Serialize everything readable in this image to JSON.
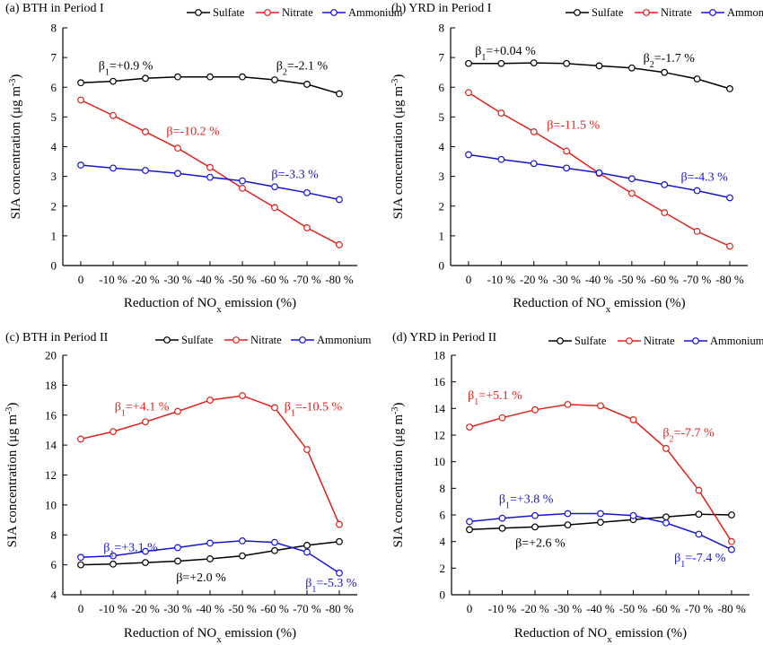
{
  "colors": {
    "Sulfate": "#000000",
    "Nitrate": "#e0201b",
    "Ammonium": "#1515d0"
  },
  "x_tick_labels": [
    "0",
    "-10 %",
    "-20 %",
    "-30 %",
    "-40 %",
    "-50 %",
    "-60 %",
    "-70 %",
    "-80 %"
  ],
  "chart_data": [
    {
      "type": "line",
      "panel": "(a)",
      "title": "(a) BTH in Period I",
      "xlabel": "Reduction of NOx emission (%)",
      "ylabel": "SIA concentration (μg m-3)",
      "x": [
        0,
        -10,
        -20,
        -30,
        -40,
        -50,
        -60,
        -70,
        -80
      ],
      "ylim": [
        0,
        8
      ],
      "yticks": [
        0,
        1,
        2,
        3,
        4,
        5,
        6,
        7,
        8
      ],
      "legend": "top-right",
      "series": [
        {
          "name": "Sulfate",
          "values": [
            6.15,
            6.2,
            6.3,
            6.35,
            6.35,
            6.35,
            6.25,
            6.1,
            5.78
          ]
        },
        {
          "name": "Nitrate",
          "values": [
            5.57,
            5.05,
            4.5,
            3.95,
            3.3,
            2.6,
            1.95,
            1.27,
            0.7
          ]
        },
        {
          "name": "Ammonium",
          "values": [
            3.38,
            3.28,
            3.2,
            3.1,
            2.97,
            2.85,
            2.65,
            2.45,
            2.22
          ]
        }
      ],
      "annotations": [
        {
          "symbol": "β",
          "sub": "1",
          "text": "=+0.9 %",
          "color": "Sulfate",
          "x": -5.5,
          "y": 6.6
        },
        {
          "symbol": "β",
          "sub": "2",
          "text": "=-2.1 %",
          "color": "Sulfate",
          "x": -60.5,
          "y": 6.6
        },
        {
          "symbol": "β",
          "sub": "",
          "text": "=-10.2 %",
          "color": "Nitrate",
          "x": -26.5,
          "y": 4.4
        },
        {
          "symbol": "β",
          "sub": "",
          "text": "=-3.3 %",
          "color": "Ammonium",
          "x": -59,
          "y": 2.95
        }
      ]
    },
    {
      "type": "line",
      "panel": "(b)",
      "title": "(b) YRD in Period I",
      "xlabel": "Reduction of NOx emission (%)",
      "ylabel": "SIA concentration (μg m-3)",
      "x": [
        0,
        -10,
        -20,
        -30,
        -40,
        -50,
        -60,
        -70,
        -80
      ],
      "ylim": [
        0,
        8
      ],
      "yticks": [
        0,
        1,
        2,
        3,
        4,
        5,
        6,
        7,
        8
      ],
      "legend": "top-right",
      "series": [
        {
          "name": "Sulfate",
          "values": [
            6.8,
            6.8,
            6.82,
            6.8,
            6.72,
            6.65,
            6.5,
            6.28,
            5.95
          ]
        },
        {
          "name": "Nitrate",
          "values": [
            5.82,
            5.13,
            4.5,
            3.85,
            3.1,
            2.43,
            1.78,
            1.15,
            0.65
          ]
        },
        {
          "name": "Ammonium",
          "values": [
            3.73,
            3.57,
            3.43,
            3.28,
            3.12,
            2.92,
            2.72,
            2.52,
            2.28
          ]
        }
      ],
      "annotations": [
        {
          "symbol": "β",
          "sub": "1",
          "text": "=+0.04 %",
          "color": "Sulfate",
          "x": -2,
          "y": 7.1
        },
        {
          "symbol": "β",
          "sub": "2",
          "text": "=-1.7 %",
          "color": "Sulfate",
          "x": -53.5,
          "y": 6.85
        },
        {
          "symbol": "β",
          "sub": "",
          "text": "=-11.5 %",
          "color": "Nitrate",
          "x": -24,
          "y": 4.6
        },
        {
          "symbol": "β",
          "sub": "",
          "text": "=-4.3 %",
          "color": "Ammonium",
          "x": -65,
          "y": 2.85
        }
      ]
    },
    {
      "type": "line",
      "panel": "(c)",
      "title": "(c) BTH in Period II",
      "xlabel": "Reduction of NOx emission (%)",
      "ylabel": "SIA concentration (μg m-3)",
      "x": [
        0,
        -10,
        -20,
        -30,
        -40,
        -50,
        -60,
        -70,
        -80
      ],
      "ylim": [
        4,
        20
      ],
      "yticks": [
        4,
        6,
        8,
        10,
        12,
        14,
        16,
        18,
        20
      ],
      "legend": "top-right",
      "series": [
        {
          "name": "Sulfate",
          "values": [
            6.0,
            6.05,
            6.15,
            6.25,
            6.4,
            6.6,
            6.95,
            7.3,
            7.55
          ]
        },
        {
          "name": "Nitrate",
          "values": [
            14.4,
            14.9,
            15.55,
            16.25,
            17.0,
            17.3,
            16.5,
            13.7,
            8.7
          ]
        },
        {
          "name": "Ammonium",
          "values": [
            6.5,
            6.6,
            6.9,
            7.15,
            7.45,
            7.6,
            7.5,
            6.85,
            5.45
          ]
        }
      ],
      "annotations": [
        {
          "symbol": "β",
          "sub": "1",
          "text": "=+4.1 %",
          "color": "Nitrate",
          "x": -10.5,
          "y": 16.3
        },
        {
          "symbol": "β",
          "sub": "1",
          "text": "=-10.5 %",
          "color": "Nitrate",
          "x": -63,
          "y": 16.3
        },
        {
          "symbol": "β",
          "sub": "1",
          "text": "=+3.1 %",
          "color": "Ammonium",
          "x": -7,
          "y": 6.9
        },
        {
          "symbol": "β",
          "sub": "",
          "text": "=+2.0 %",
          "color": "Sulfate",
          "x": -29.5,
          "y": 4.9
        },
        {
          "symbol": "β",
          "sub": "1",
          "text": "=-5.3 %",
          "color": "Ammonium",
          "x": -69.5,
          "y": 4.55
        }
      ]
    },
    {
      "type": "line",
      "panel": "(d)",
      "title": "(d) YRD in Period II",
      "xlabel": "Reduction of NOx emission (%)",
      "ylabel": "SIA concentration (μg m-3)",
      "x": [
        0,
        -10,
        -20,
        -30,
        -40,
        -50,
        -60,
        -70,
        -80
      ],
      "ylim": [
        0,
        18
      ],
      "yticks": [
        0,
        2,
        4,
        6,
        8,
        10,
        12,
        14,
        16,
        18
      ],
      "legend": "top-right",
      "series": [
        {
          "name": "Sulfate",
          "values": [
            4.9,
            5.0,
            5.1,
            5.25,
            5.45,
            5.65,
            5.85,
            6.05,
            6.0
          ]
        },
        {
          "name": "Nitrate",
          "values": [
            12.6,
            13.3,
            13.9,
            14.3,
            14.2,
            13.15,
            11.0,
            7.85,
            4.0
          ]
        },
        {
          "name": "Ammonium",
          "values": [
            5.5,
            5.75,
            5.95,
            6.1,
            6.1,
            5.95,
            5.4,
            4.55,
            3.4
          ]
        }
      ],
      "annotations": [
        {
          "symbol": "β",
          "sub": "1",
          "text": "=+5.1 %",
          "color": "Nitrate",
          "x": 0.5,
          "y": 14.7
        },
        {
          "symbol": "β",
          "sub": "2",
          "text": "=-7.7 %",
          "color": "Nitrate",
          "x": -59,
          "y": 11.9
        },
        {
          "symbol": "β",
          "sub": "1",
          "text": "=+3.8 %",
          "color": "Ammonium",
          "x": -9,
          "y": 6.9
        },
        {
          "symbol": "β",
          "sub": "",
          "text": "=+2.6 %",
          "color": "Sulfate",
          "x": -14,
          "y": 3.6
        },
        {
          "symbol": "β",
          "sub": "1",
          "text": "=-7.4 %",
          "color": "Ammonium",
          "x": -62.5,
          "y": 2.5
        }
      ]
    }
  ]
}
